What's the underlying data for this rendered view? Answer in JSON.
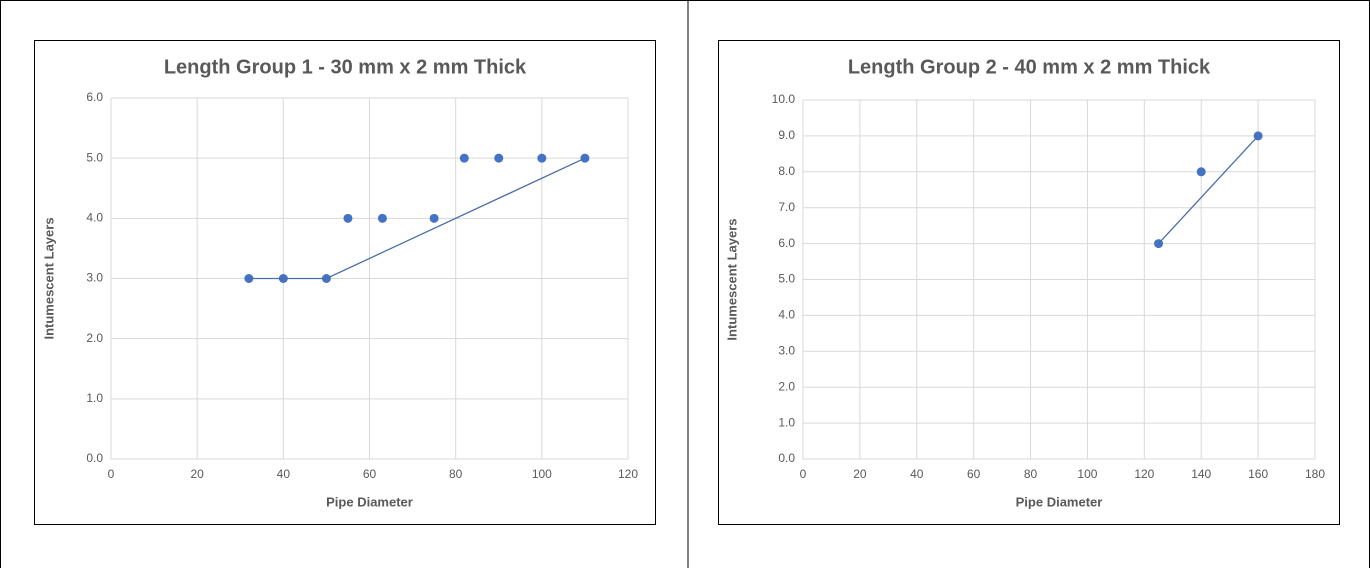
{
  "chart_data": [
    {
      "type": "scatter",
      "title": "Length Group 1 - 30 mm x 2 mm Thick",
      "xlabel": "Pipe Diameter",
      "ylabel": "Intumescent Layers",
      "xlim": [
        0,
        120
      ],
      "xticks": [
        0,
        20,
        40,
        60,
        80,
        100,
        120
      ],
      "ylim": [
        0,
        6
      ],
      "yticks": [
        {
          "value": 0,
          "label": "0.0"
        },
        {
          "value": 1,
          "label": "1.0"
        },
        {
          "value": 2,
          "label": "2.0"
        },
        {
          "value": 3,
          "label": "3.0"
        },
        {
          "value": 4,
          "label": "4.0"
        },
        {
          "value": 5,
          "label": "5.0"
        },
        {
          "value": 6,
          "label": "6.0"
        }
      ],
      "grid": true,
      "series": [
        {
          "type": "scatter",
          "color": "#4472c4",
          "x": [
            32,
            40,
            50,
            55,
            63,
            75,
            82,
            90,
            100,
            110
          ],
          "values": [
            3,
            3,
            3,
            4,
            4,
            4,
            5,
            5,
            5,
            5
          ]
        },
        {
          "type": "line",
          "color": "#4a6ea8",
          "x": [
            32,
            40,
            50,
            110
          ],
          "values": [
            3,
            3,
            3,
            5
          ]
        }
      ]
    },
    {
      "type": "scatter",
      "title": "Length Group 2 - 40 mm x 2 mm Thick",
      "xlabel": "Pipe Diameter",
      "ylabel": "Intumescent Layers",
      "xlim": [
        0,
        180
      ],
      "xticks": [
        0,
        20,
        40,
        60,
        80,
        100,
        120,
        140,
        160,
        180
      ],
      "ylim": [
        0,
        10
      ],
      "yticks": [
        {
          "value": 0,
          "label": "0.0"
        },
        {
          "value": 1,
          "label": "1.0"
        },
        {
          "value": 2,
          "label": "2.0"
        },
        {
          "value": 3,
          "label": "3.0"
        },
        {
          "value": 4,
          "label": "4.0"
        },
        {
          "value": 5,
          "label": "5.0"
        },
        {
          "value": 6,
          "label": "6.0"
        },
        {
          "value": 7,
          "label": "7.0"
        },
        {
          "value": 8,
          "label": "8.0"
        },
        {
          "value": 9,
          "label": "9.0"
        },
        {
          "value": 10,
          "label": "10.0"
        }
      ],
      "grid": true,
      "series": [
        {
          "type": "scatter",
          "color": "#4472c4",
          "x": [
            125,
            140,
            160
          ],
          "values": [
            6,
            8,
            9
          ]
        },
        {
          "type": "line",
          "color": "#4a6ea8",
          "x": [
            125,
            160
          ],
          "values": [
            6,
            9
          ]
        }
      ]
    }
  ]
}
